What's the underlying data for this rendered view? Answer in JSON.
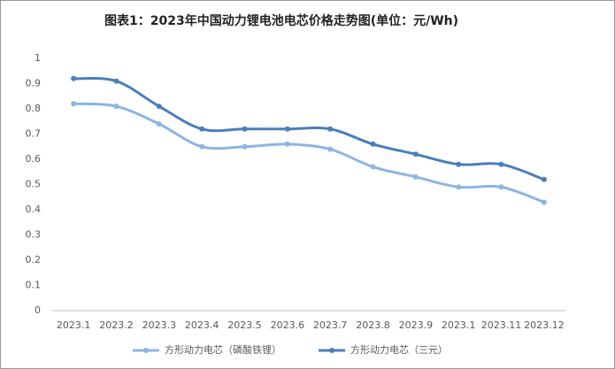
{
  "chart_data": {
    "type": "line",
    "title": "图表1：2023年中国动力锂电池电芯价格走势图(单位：元/Wh)",
    "categories": [
      "2023.1",
      "2023.2",
      "2023.3",
      "2023.4",
      "2023.5",
      "2023.6",
      "2023.7",
      "2023.8",
      "2023.9",
      "2023.1",
      "2023.11",
      "2023.12"
    ],
    "series": [
      {
        "name": "方形动力电芯（磷酸铁锂）",
        "color": "#8db4e2",
        "values": [
          0.82,
          0.81,
          0.74,
          0.65,
          0.65,
          0.66,
          0.64,
          0.57,
          0.53,
          0.49,
          0.49,
          0.43
        ]
      },
      {
        "name": "方形动力电芯（三元）",
        "color": "#4a7ebb",
        "values": [
          0.92,
          0.91,
          0.81,
          0.72,
          0.72,
          0.72,
          0.72,
          0.66,
          0.62,
          0.58,
          0.58,
          0.52
        ]
      }
    ],
    "ylim": [
      0,
      1
    ],
    "yticks": [
      0,
      0.1,
      0.2,
      0.3,
      0.4,
      0.5,
      0.6,
      0.7,
      0.8,
      0.9,
      1
    ],
    "grid": false,
    "smooth": true,
    "legend": "bottom"
  }
}
